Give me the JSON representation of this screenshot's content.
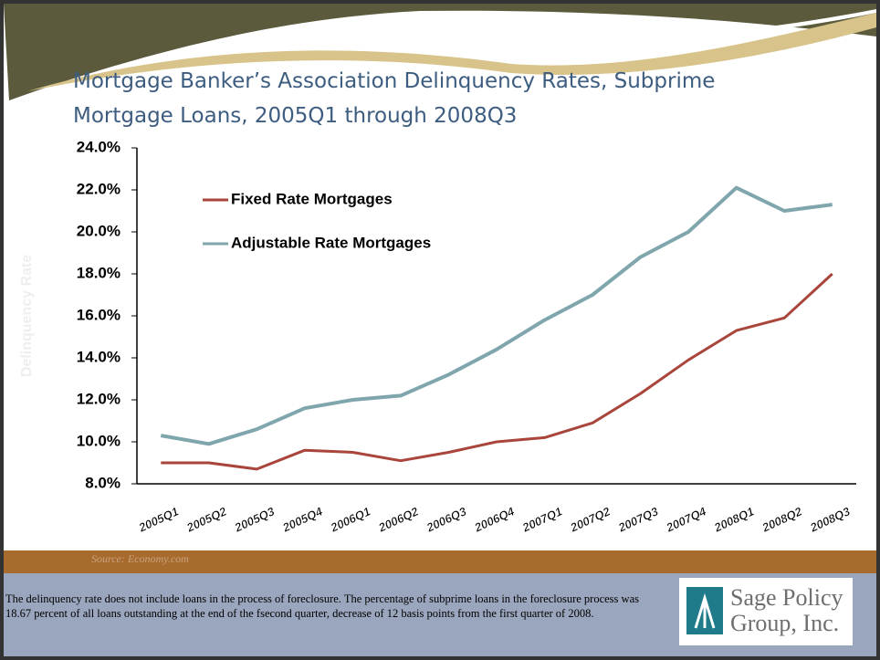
{
  "chart_data": {
    "type": "line",
    "title": "Mortgage Banker’s Association Delinquency Rates, Subprime Mortgage Loans, 2005Q1 through 2008Q3",
    "y_label": "Delinquency Rate",
    "categories": [
      "2005Q1",
      "2005Q2",
      "2005Q3",
      "2005Q4",
      "2006Q1",
      "2006Q2",
      "2006Q3",
      "2006Q4",
      "2007Q1",
      "2007Q2",
      "2007Q3",
      "2007Q4",
      "2008Q1",
      "2008Q2",
      "2008Q3"
    ],
    "series": [
      {
        "name": "Fixed Rate Mortgages",
        "color": "#a9453a",
        "values": [
          9.0,
          9.0,
          8.7,
          9.6,
          9.5,
          9.1,
          9.5,
          10.0,
          10.2,
          10.9,
          12.3,
          13.9,
          15.3,
          15.9,
          18.0
        ]
      },
      {
        "name": "Adjustable Rate Mortgages",
        "color": "#7fa6ac",
        "values": [
          10.3,
          9.9,
          10.6,
          11.6,
          12.0,
          12.2,
          13.2,
          14.4,
          15.8,
          17.0,
          18.8,
          20.0,
          22.1,
          21.0,
          21.3
        ]
      }
    ],
    "ylim": [
      8,
      24
    ],
    "yticks": [
      {
        "value": 8,
        "label": "8.0%"
      },
      {
        "value": 10,
        "label": "10.0%"
      },
      {
        "value": 12,
        "label": "12.0%"
      },
      {
        "value": 14,
        "label": "14.0%"
      },
      {
        "value": 16,
        "label": "16.0%"
      },
      {
        "value": 18,
        "label": "18.0%"
      },
      {
        "value": 20,
        "label": "20.0%"
      },
      {
        "value": 22,
        "label": "22.0%"
      },
      {
        "value": 24,
        "label": "24.0%"
      }
    ],
    "grid": false
  },
  "source": "Source: Economy.com",
  "footnote": "The delinquency rate does not include loans in the process of foreclosure.  The percentage of subprime loans in the foreclosure process was 18.67 percent of all loans outstanding at the end of the fsecond quarter, decrease of 12 basis points from the first quarter of 2008.",
  "logo_lines": [
    "Sage Policy",
    "Group, Inc."
  ]
}
